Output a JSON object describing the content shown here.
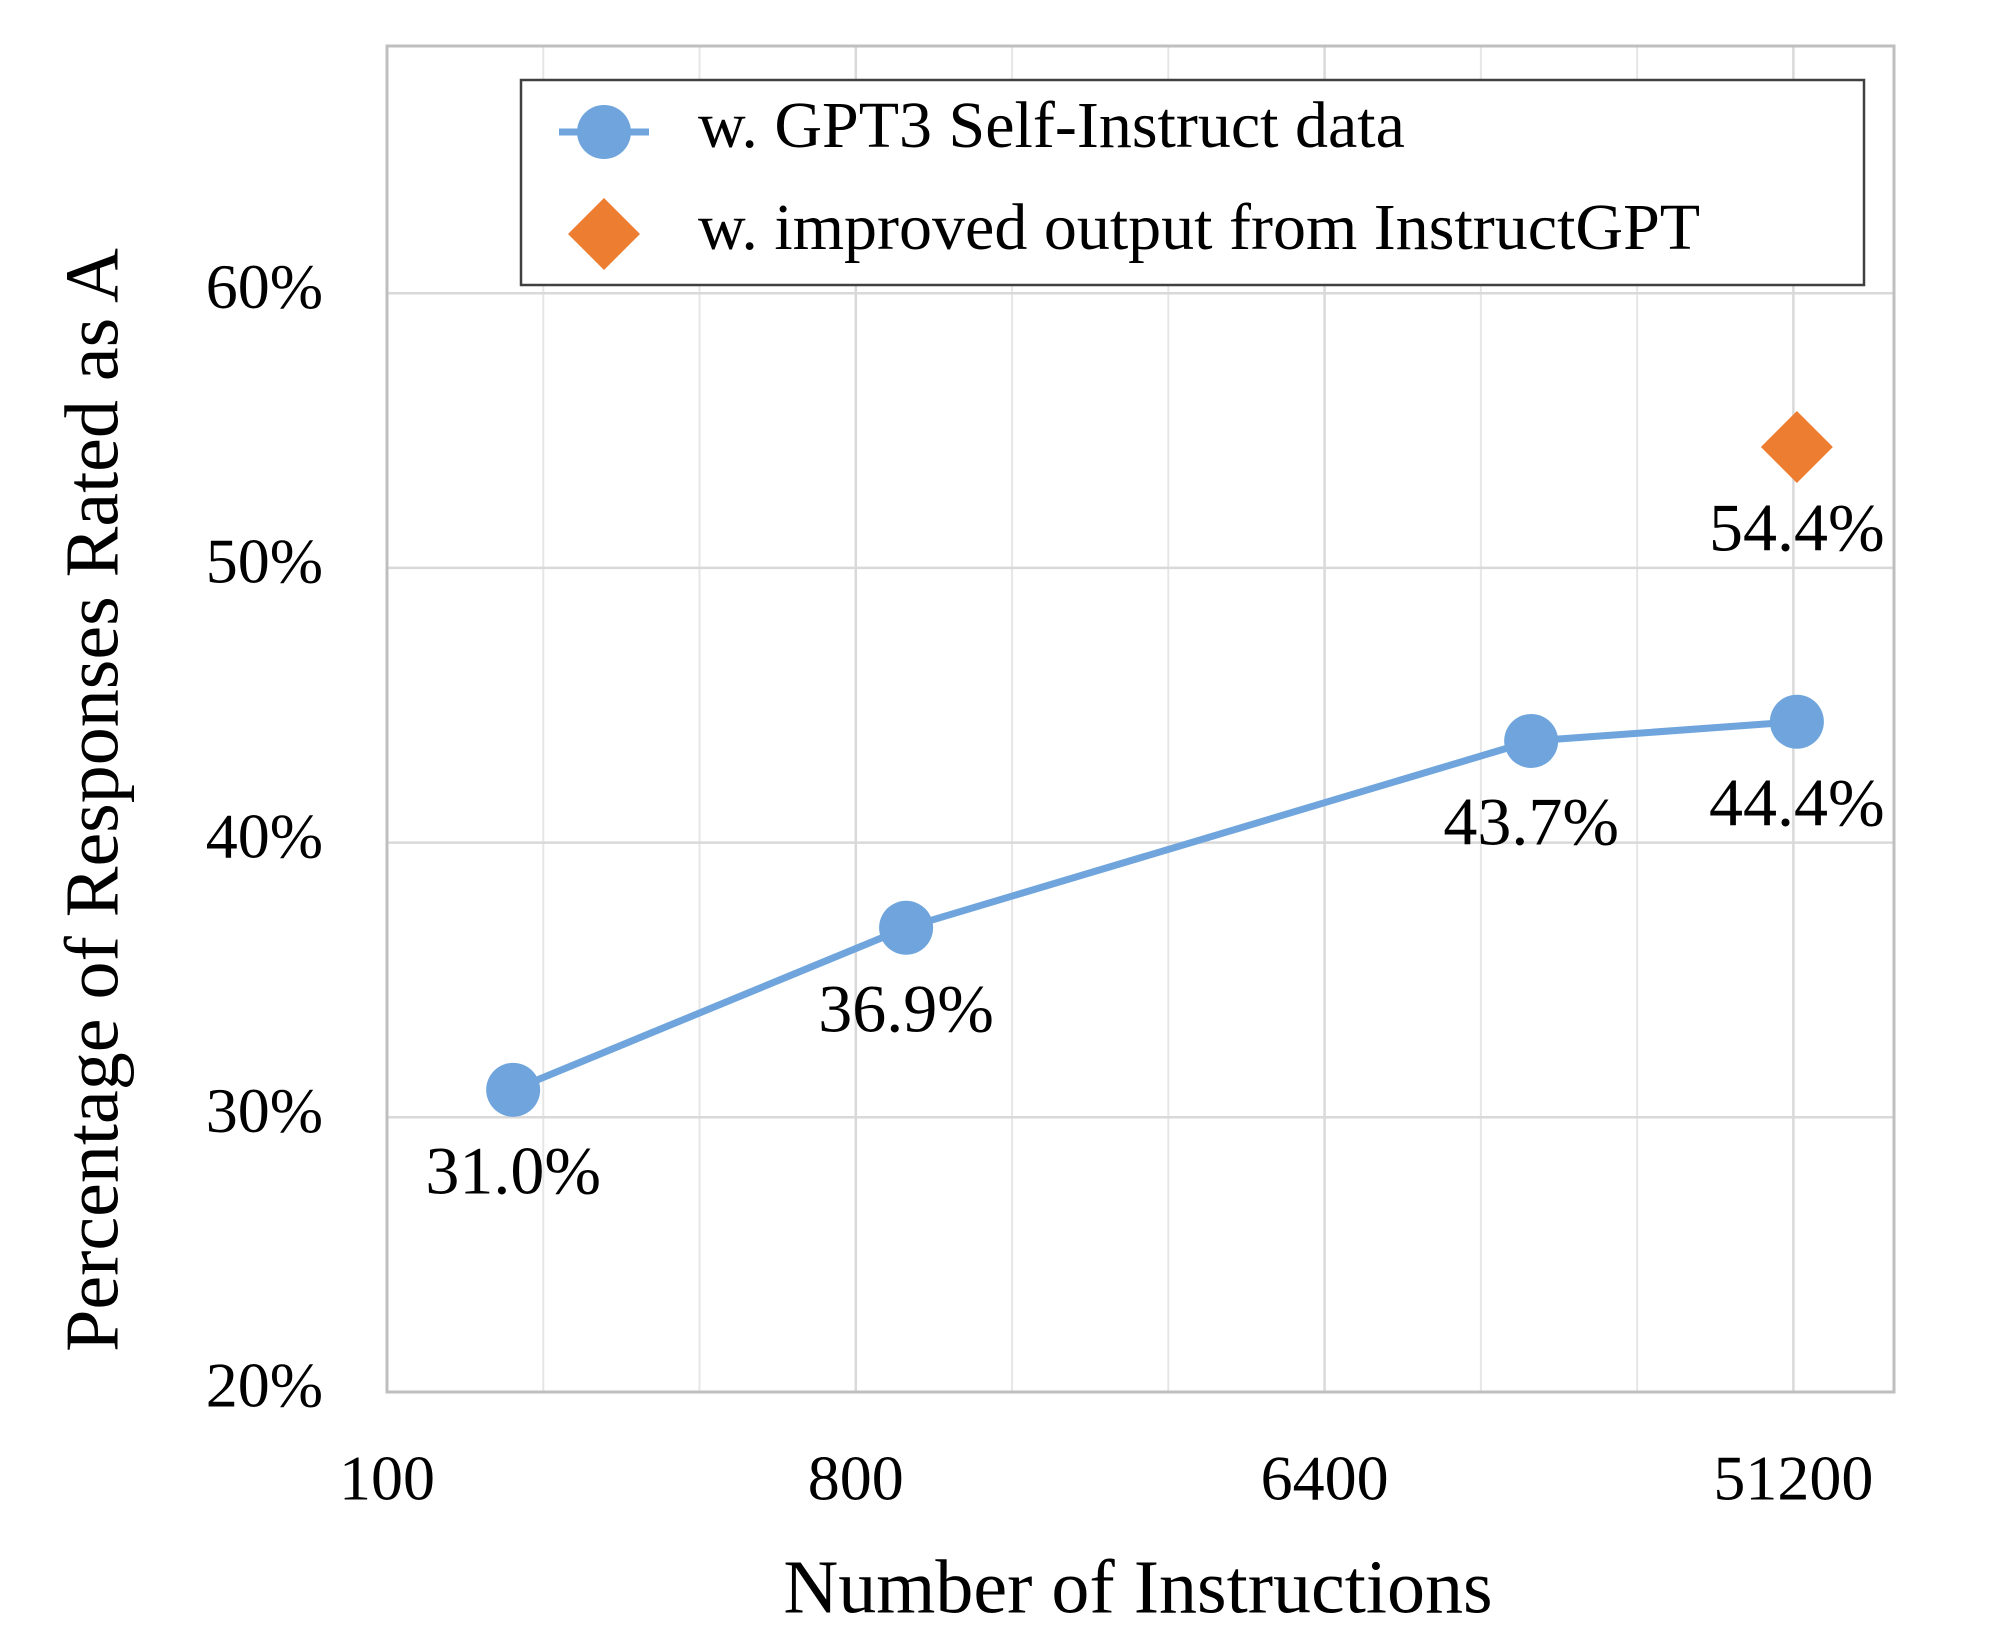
{
  "chart_data": {
    "type": "line",
    "xlabel": "Number of Instructions",
    "ylabel": "Percentage of Responses Rated as A",
    "xscale": "log",
    "xlim": [
      100,
      80000
    ],
    "xticks": [
      100,
      800,
      6400,
      51200
    ],
    "xminor": [
      200,
      400,
      1600,
      3200,
      12800,
      25600
    ],
    "ylim": [
      20,
      69
    ],
    "yticks": [
      {
        "value": 20,
        "label": "20%"
      },
      {
        "value": 30,
        "label": "30%"
      },
      {
        "value": 40,
        "label": "40%"
      },
      {
        "value": 50,
        "label": "50%"
      },
      {
        "value": 60,
        "label": "60%"
      }
    ],
    "grid": true,
    "legend": "top",
    "series": [
      {
        "name": "w. GPT3 Self-Instruct data",
        "color": "#6fa5dc",
        "marker": "circle",
        "x": [
          175,
          1000,
          16000,
          52000
        ],
        "values": [
          31.0,
          36.9,
          43.7,
          44.4
        ],
        "value_labels": [
          "31.0%",
          "36.9%",
          "43.7%",
          "44.4%"
        ]
      },
      {
        "name": "w. improved output from InstructGPT",
        "color": "#ed7d31",
        "marker": "diamond",
        "x": [
          52000
        ],
        "values": [
          54.4
        ],
        "value_labels": [
          "54.4%"
        ]
      }
    ]
  }
}
